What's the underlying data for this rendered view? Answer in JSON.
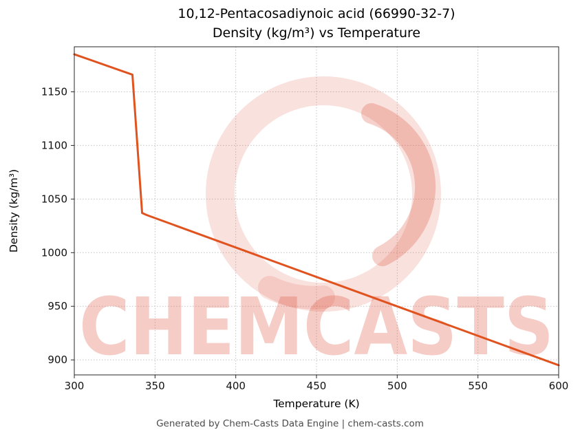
{
  "title": {
    "line1": "10,12-Pentacosadiynoic acid (66990-32-7)",
    "line2": "Density (kg/m³) vs Temperature"
  },
  "footer": "Generated by Chem-Casts Data Engine | chem-casts.com",
  "watermark": {
    "text": "CHEMCASTS",
    "color": "#df5742"
  },
  "chart_data": {
    "type": "line",
    "title": "10,12-Pentacosadiynoic acid (66990-32-7) — Density (kg/m³) vs Temperature",
    "xlabel": "Temperature (K)",
    "ylabel": "Density (kg/m³)",
    "xlim": [
      300,
      600
    ],
    "ylim": [
      886,
      1192
    ],
    "xticks": [
      300,
      350,
      400,
      450,
      500,
      550,
      600
    ],
    "yticks": [
      900,
      950,
      1000,
      1050,
      1100,
      1150
    ],
    "grid": true,
    "grid_style": "dotted",
    "legend": false,
    "series": [
      {
        "name": "density",
        "color": "#e0531f",
        "line_width": 3,
        "points": [
          [
            300,
            1185
          ],
          [
            336,
            1166
          ],
          [
            342,
            1037
          ],
          [
            345,
            1035
          ],
          [
            600,
            895
          ]
        ]
      }
    ]
  }
}
